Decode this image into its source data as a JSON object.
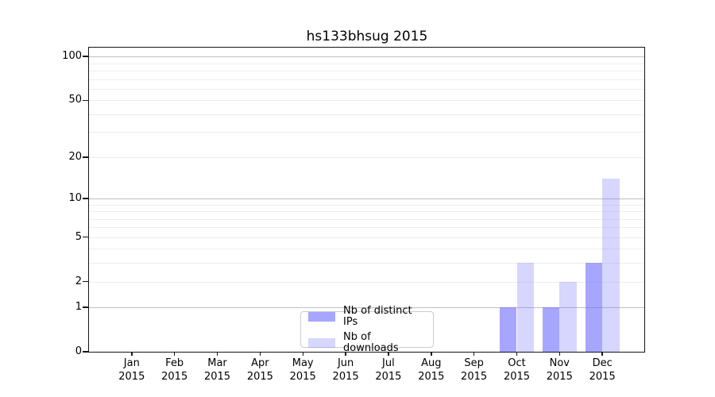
{
  "chart_data": {
    "type": "bar",
    "title": "hs133bhsug 2015",
    "categories": [
      "Jan",
      "Feb",
      "Mar",
      "Apr",
      "May",
      "Jun",
      "Jul",
      "Aug",
      "Sep",
      "Oct",
      "Nov",
      "Dec"
    ],
    "category_year": "2015",
    "series": [
      {
        "name": "Nb of distinct IPs",
        "color": "rgba(102,102,255,0.58)",
        "values": [
          0,
          0,
          0,
          0,
          0,
          0,
          0,
          0,
          0,
          1,
          1,
          3
        ]
      },
      {
        "name": "Nb of downloads",
        "color": "rgba(102,102,255,0.27)",
        "values": [
          0,
          0,
          0,
          0,
          0,
          0,
          0,
          0,
          0,
          3,
          2,
          14
        ]
      }
    ],
    "yscale": "log1p",
    "ylim": [
      0,
      115
    ],
    "yticks": [
      0,
      1,
      2,
      5,
      10,
      20,
      50,
      100
    ],
    "major_gridlines": [
      1,
      10,
      100
    ],
    "minor_gridlines": [
      2,
      3,
      4,
      5,
      6,
      7,
      8,
      9,
      20,
      30,
      40,
      50,
      60,
      70,
      80,
      90
    ],
    "grid": true,
    "legend_position": "lower center",
    "xlabel": "",
    "ylabel": ""
  },
  "colors": {
    "bar_distinct_ips": "rgba(102,102,255,0.58)",
    "bar_downloads": "rgba(102,102,255,0.27)",
    "grid_minor": "#ededed",
    "grid_major": "#c0c0c0",
    "axis": "#151515",
    "legend_border": "#cccccc"
  }
}
